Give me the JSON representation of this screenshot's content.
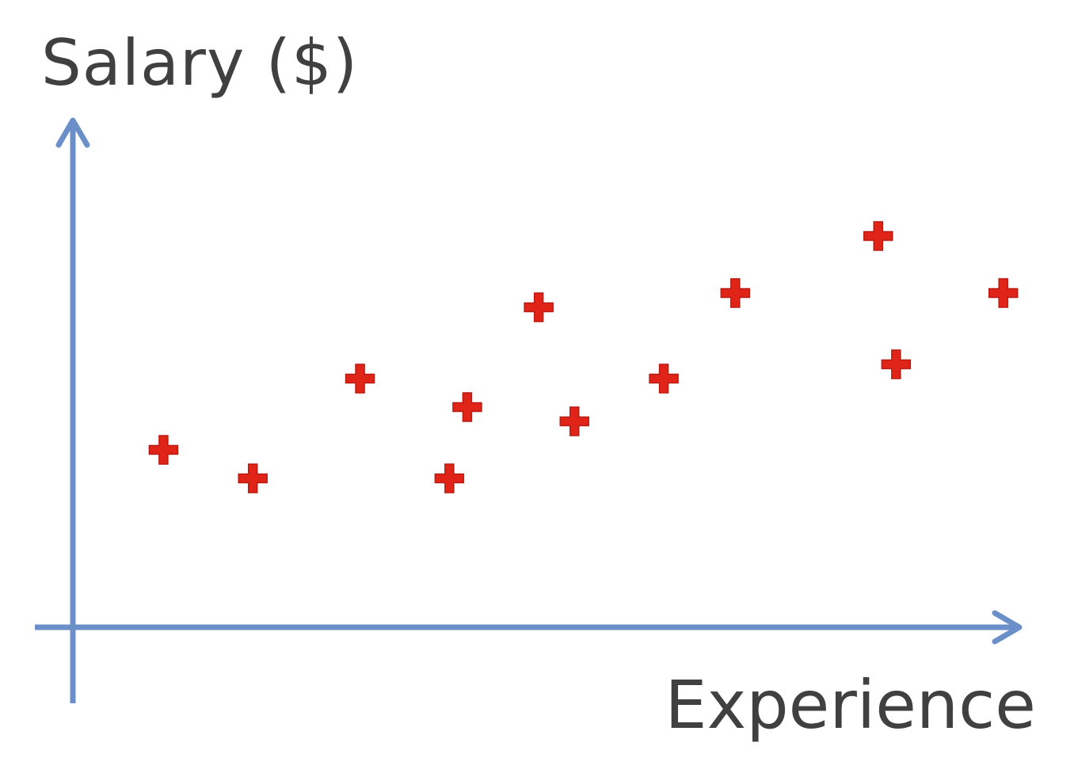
{
  "chart_data": {
    "type": "scatter",
    "title": "",
    "xlabel": "Experience",
    "ylabel": "Salary ($)",
    "grid": false,
    "ticks": false,
    "x_range": [
      0,
      100
    ],
    "y_range": [
      0,
      100
    ],
    "colors": {
      "axis": "#6b8fc9",
      "marker": "#e02418",
      "text": "#404040"
    },
    "marker_shape": "plus",
    "series": [
      {
        "points": [
          {
            "x": 5,
            "y": 37
          },
          {
            "x": 15,
            "y": 31
          },
          {
            "x": 27,
            "y": 52
          },
          {
            "x": 37,
            "y": 31
          },
          {
            "x": 39,
            "y": 46
          },
          {
            "x": 47,
            "y": 67
          },
          {
            "x": 51,
            "y": 43
          },
          {
            "x": 61,
            "y": 52
          },
          {
            "x": 69,
            "y": 70
          },
          {
            "x": 85,
            "y": 82
          },
          {
            "x": 87,
            "y": 55
          },
          {
            "x": 99,
            "y": 70
          }
        ]
      }
    ]
  }
}
